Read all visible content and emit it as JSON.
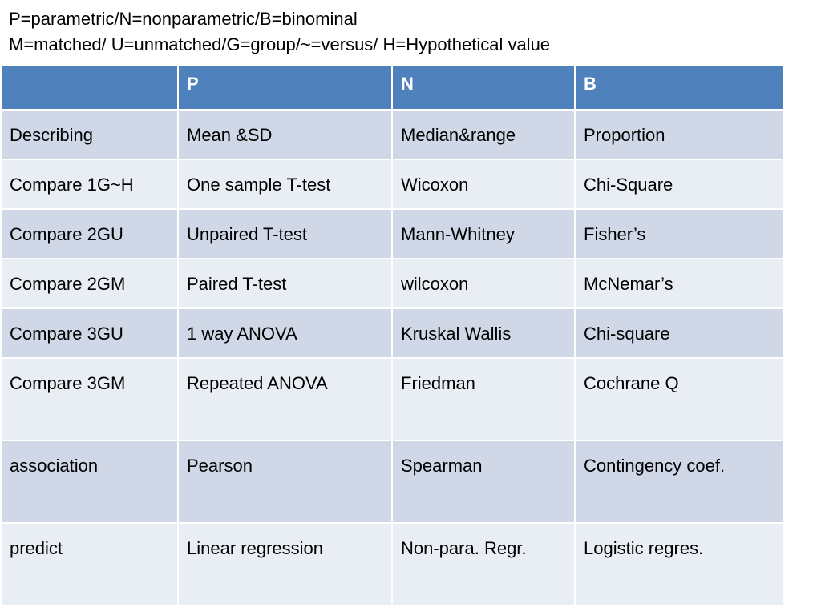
{
  "legend": {
    "line1": "P=parametric/N=nonparametric/B=binominal",
    "line2": "M=matched/  U=unmatched/G=group/~=versus/ H=Hypothetical value"
  },
  "table": {
    "headers": [
      "",
      "P",
      "N",
      "B"
    ],
    "rows": [
      [
        "Describing",
        "Mean &SD",
        "Median&range",
        "Proportion"
      ],
      [
        "Compare 1G~H",
        "One sample T-test",
        "Wicoxon",
        "Chi-Square"
      ],
      [
        "Compare 2GU",
        "Unpaired T-test",
        "Mann-Whitney",
        "Fisher’s"
      ],
      [
        "Compare 2GM",
        "Paired T-test",
        "wilcoxon",
        "McNemar’s"
      ],
      [
        "Compare 3GU",
        "1 way ANOVA",
        "Kruskal Wallis",
        "Chi-square"
      ],
      [
        "Compare 3GM",
        "Repeated ANOVA",
        "Friedman",
        "Cochrane Q"
      ],
      [
        "association",
        "Pearson",
        "Spearman",
        "Contingency coef."
      ],
      [
        "predict",
        "Linear regression",
        "Non-para. Regr.",
        "Logistic regres."
      ]
    ]
  },
  "colors": {
    "header_bg": "#4f81bd",
    "row_dark": "#d0d8e8",
    "row_light": "#e9edf4"
  }
}
